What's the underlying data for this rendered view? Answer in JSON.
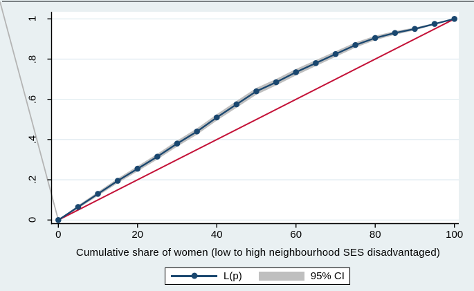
{
  "chart_data": {
    "type": "line",
    "title": "",
    "xlabel": "Cumulative share of women (low to high neighbourhood SES disadvantaged)",
    "ylabel": "",
    "xlim": [
      0,
      100
    ],
    "ylim": [
      0,
      1
    ],
    "xticks": [
      0,
      20,
      40,
      60,
      80,
      100
    ],
    "yticks": {
      "labels": [
        "0",
        ".2",
        ".4",
        ".6",
        ".8",
        "1"
      ],
      "values": [
        0,
        0.2,
        0.4,
        0.6,
        0.8,
        1
      ]
    },
    "grid": "horizontal",
    "background_color": "#e9f0f2",
    "plot_background_color": "#ffffff",
    "gridline_color": "#dde9ef",
    "legend": {
      "position": "bottom-center",
      "entries": [
        {
          "label": "L(p)",
          "type": "line-marker",
          "color": "#1a476f"
        },
        {
          "label": "95% CI",
          "type": "band",
          "color": "#bfbfbf"
        }
      ]
    },
    "series": [
      {
        "name": "L(p)",
        "type": "line",
        "marker": "circle",
        "color": "#1a476f",
        "x": [
          0,
          5,
          10,
          15,
          20,
          25,
          30,
          35,
          40,
          45,
          50,
          55,
          60,
          65,
          70,
          75,
          80,
          85,
          90,
          95,
          100
        ],
        "y": [
          0,
          0.065,
          0.13,
          0.195,
          0.255,
          0.315,
          0.38,
          0.44,
          0.51,
          0.575,
          0.64,
          0.685,
          0.735,
          0.78,
          0.825,
          0.87,
          0.905,
          0.93,
          0.95,
          0.975,
          1
        ]
      },
      {
        "name": "95% CI",
        "type": "band",
        "color": "#bfbfbf",
        "x": [
          0,
          5,
          10,
          15,
          20,
          25,
          30,
          35,
          40,
          45,
          50,
          55,
          60,
          65,
          70,
          75,
          80,
          85,
          90,
          95,
          100
        ],
        "upper": [
          0,
          0.073,
          0.14,
          0.207,
          0.268,
          0.329,
          0.395,
          0.456,
          0.526,
          0.592,
          0.657,
          0.701,
          0.751,
          0.795,
          0.839,
          0.883,
          0.916,
          0.939,
          0.957,
          0.979,
          1
        ],
        "lower": [
          0,
          0.057,
          0.12,
          0.183,
          0.242,
          0.301,
          0.365,
          0.424,
          0.494,
          0.558,
          0.623,
          0.669,
          0.719,
          0.765,
          0.811,
          0.857,
          0.894,
          0.921,
          0.943,
          0.971,
          1
        ]
      },
      {
        "name": "line of equality",
        "type": "line",
        "color": "#c41238",
        "x": [
          0,
          100
        ],
        "y": [
          0,
          1
        ]
      }
    ]
  }
}
